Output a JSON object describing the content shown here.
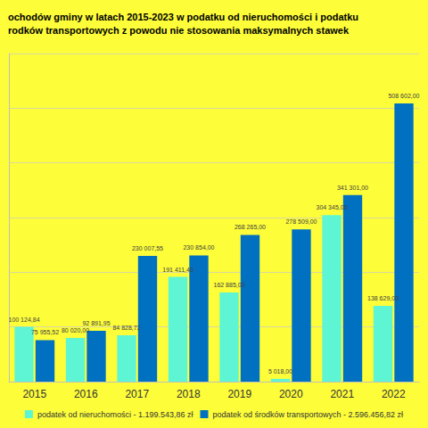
{
  "chart_data": {
    "type": "bar",
    "title": "ochodów gminy w latach 2015-2023 w podatku od nieruchomości i podatku\nrodków transportowych z powodu nie stosowania maksymalnych stawek",
    "categories": [
      "2015",
      "2016",
      "2017",
      "2018",
      "2019",
      "2020",
      "2021",
      "2022"
    ],
    "series": [
      {
        "name": "podatek od nieruchomości - 1.199.543,86 zł",
        "color": "#5df5d4",
        "values": [
          100124.84,
          80020.0,
          84828.72,
          191411.4,
          162885.0,
          5018.0,
          304345.0,
          138629.0
        ],
        "value_labels": [
          "100 124,84",
          "80 020,00",
          "84 828,72",
          "191 411,40",
          "162 885,00",
          "5 018,00",
          "304 345,00",
          "138 629,00"
        ]
      },
      {
        "name": "podatek od środków transportowych - 2.596.456,82 zł",
        "color": "#0070c0",
        "values": [
          75955.52,
          92891.95,
          230007.55,
          230854.0,
          268265.0,
          278509.0,
          341301.0,
          508602.0
        ],
        "value_labels": [
          "75 955,52",
          "92 891,95",
          "230 007,55",
          "230 854,00",
          "268 265,00",
          "278 509,00",
          "341 301,00",
          "508 602,00"
        ]
      }
    ],
    "ylim": [
      0,
      600000
    ],
    "yticks": [
      0,
      100000,
      200000,
      300000,
      400000,
      500000,
      600000
    ],
    "grid": true,
    "legend": "bottom",
    "data_labels": true,
    "tick_labels": "x"
  }
}
